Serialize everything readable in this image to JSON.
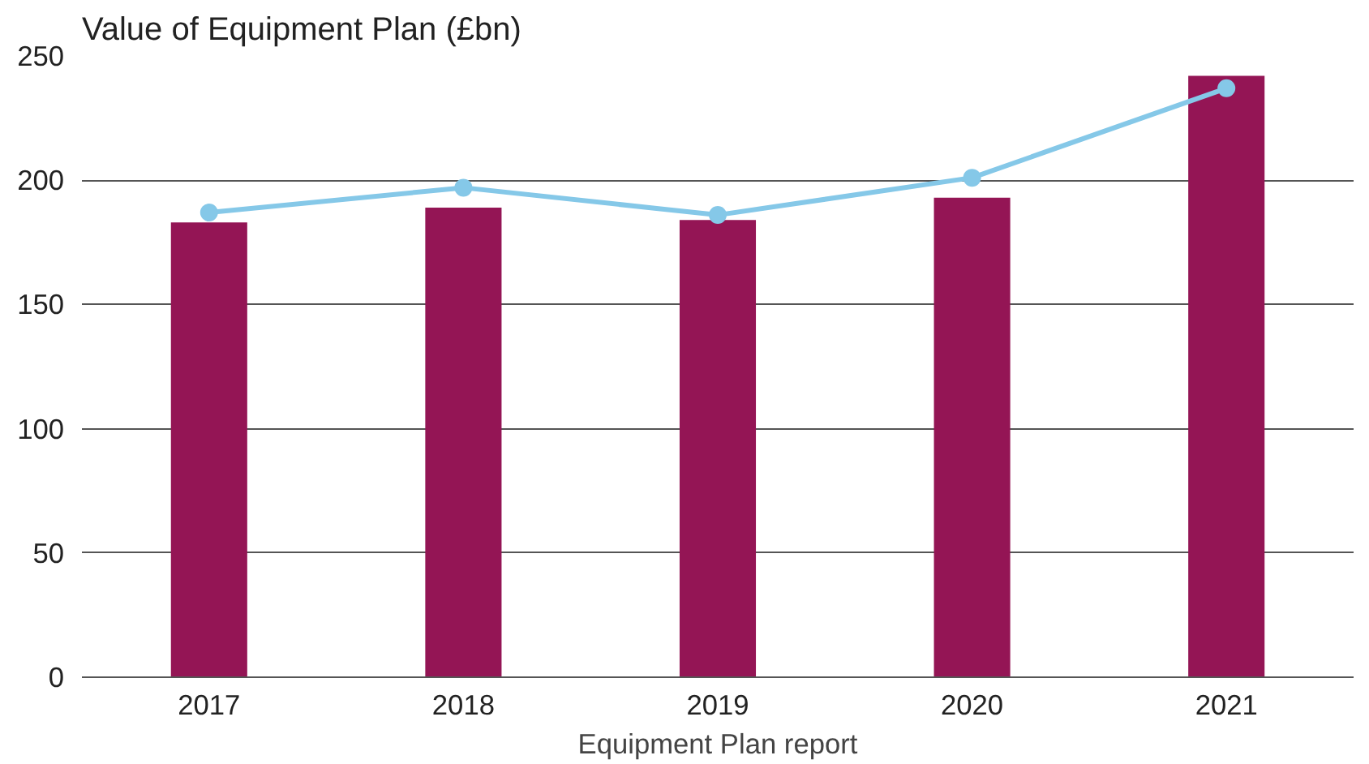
{
  "chart_data": {
    "type": "bar",
    "title": "Value of Equipment Plan (£bn)",
    "xlabel": "Equipment Plan report",
    "categories": [
      "2017",
      "2018",
      "2019",
      "2020",
      "2021"
    ],
    "series": [
      {
        "color": "#941555",
        "values": [
          183,
          189,
          184,
          193,
          242
        ]
      },
      {
        "type": "line",
        "color": "#85c8e8",
        "values": [
          187,
          197,
          186,
          201,
          237
        ],
        "marker": "circle"
      }
    ],
    "ylim": [
      0,
      250
    ],
    "yticks": [
      0,
      50,
      100,
      150,
      200,
      250
    ],
    "grid": "y"
  }
}
